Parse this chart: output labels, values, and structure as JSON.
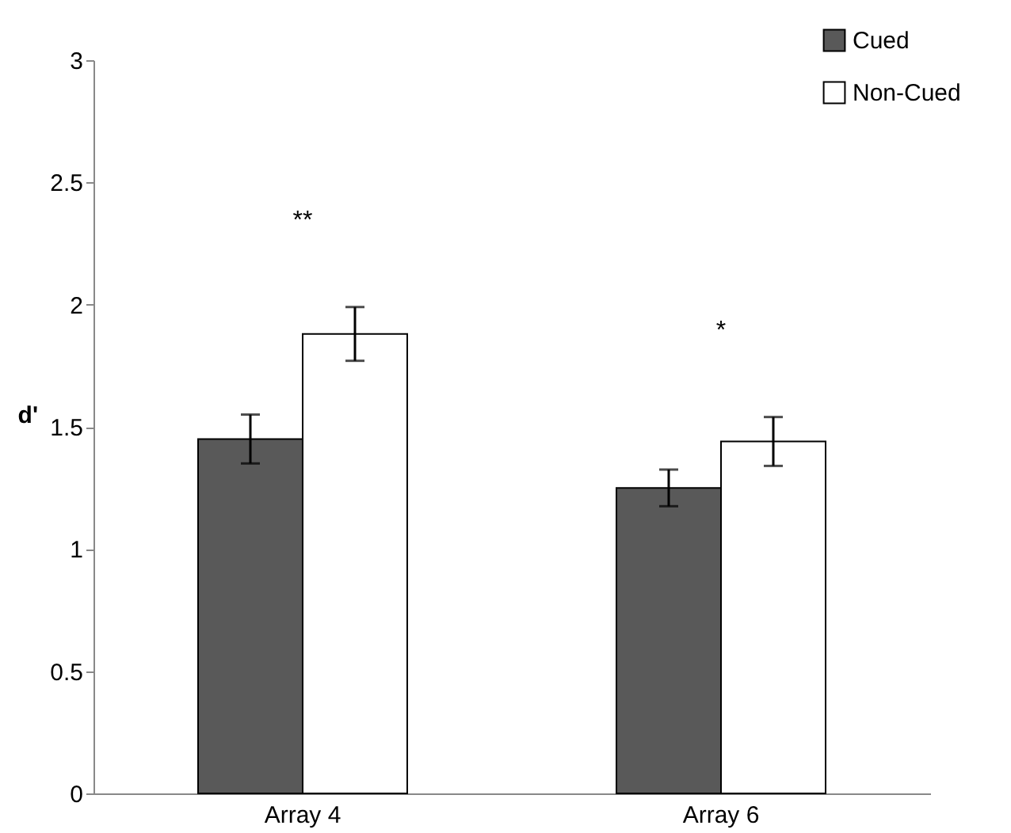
{
  "chart_data": {
    "type": "bar",
    "ylabel": "d'",
    "categories": [
      "Array 4",
      "Array 6"
    ],
    "series": [
      {
        "name": "Cued",
        "color": "#595959",
        "values": [
          1.45,
          1.25
        ],
        "errors": [
          0.1,
          0.075
        ]
      },
      {
        "name": "Non-Cued",
        "color": "#ffffff",
        "values": [
          1.88,
          1.44
        ],
        "errors": [
          0.11,
          0.1
        ]
      }
    ],
    "ylim": [
      0,
      3
    ],
    "yticks": [
      0,
      0.5,
      1,
      1.5,
      2,
      2.5,
      3
    ],
    "grid": false,
    "legend": "top right",
    "annotations": [
      "**",
      "*"
    ]
  }
}
